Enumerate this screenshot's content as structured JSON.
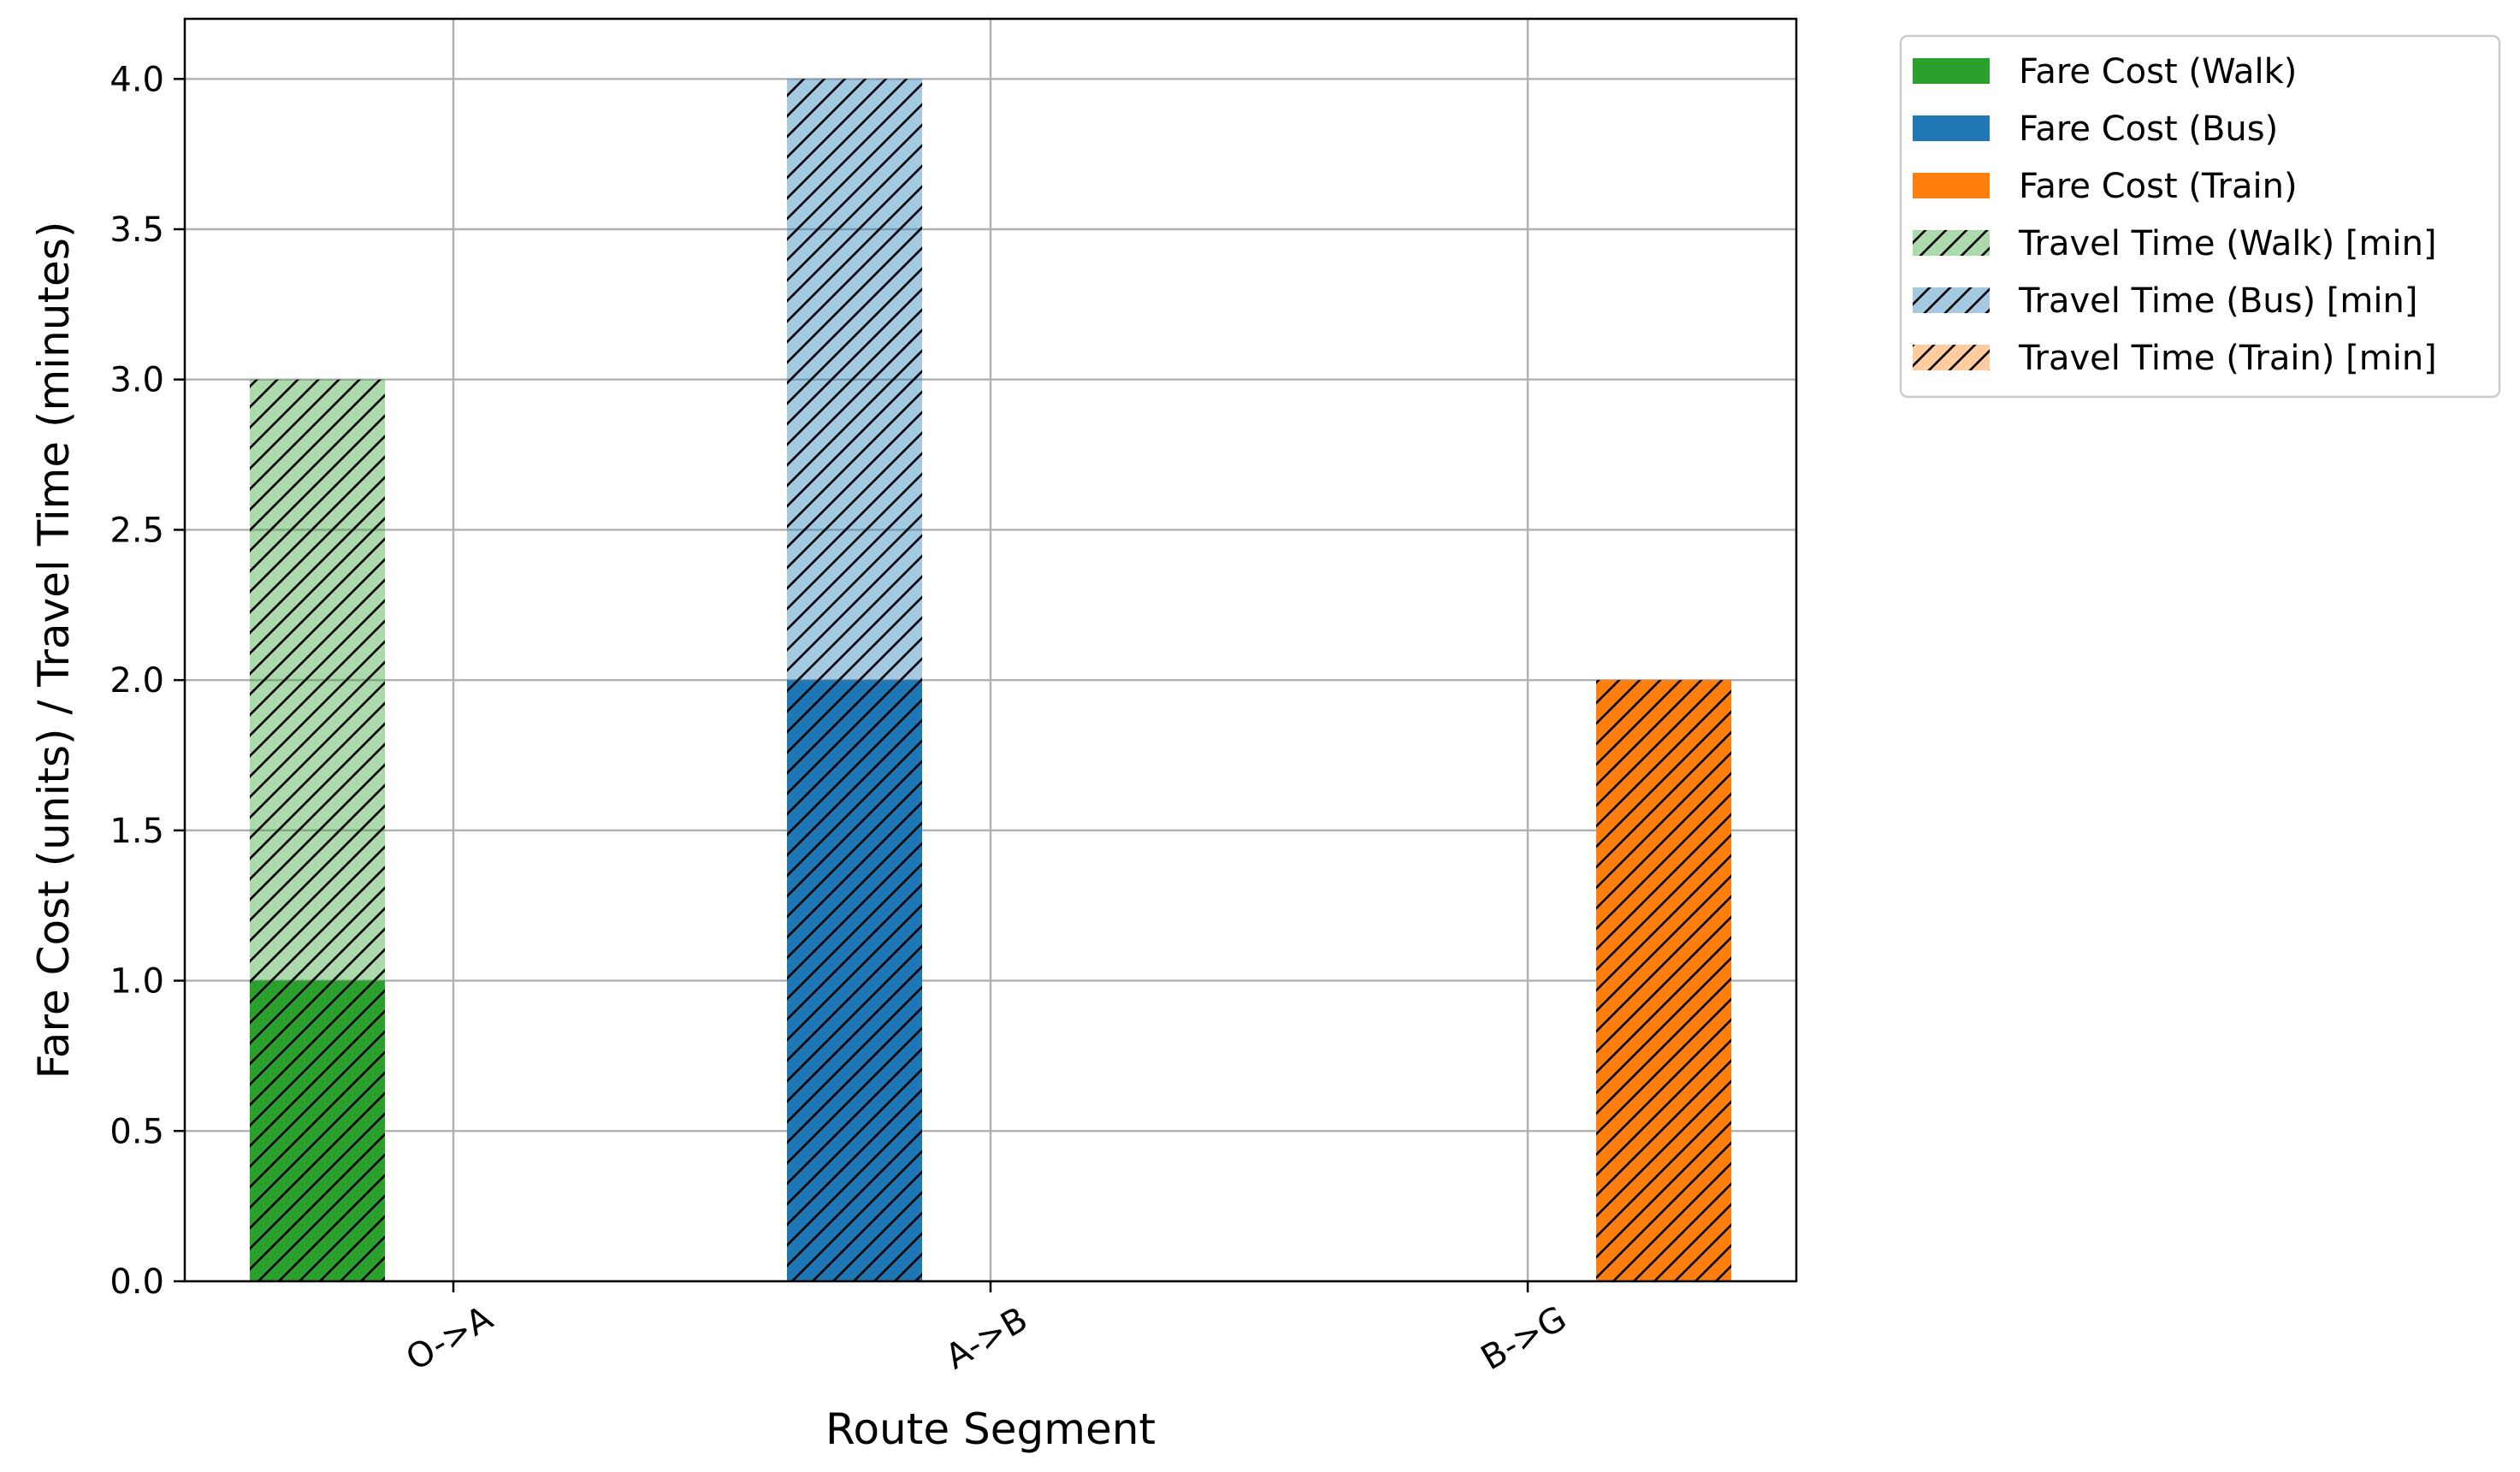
{
  "chart_data": {
    "type": "bar",
    "stacked": true,
    "title": "",
    "xlabel": "Route Segment",
    "ylabel": "Fare Cost (units) / Travel Time (minutes)",
    "categories": [
      "O->A",
      "A->B",
      "B->G"
    ],
    "ylim": [
      0,
      4.2
    ],
    "yticks": [
      0.0,
      0.5,
      1.0,
      1.5,
      2.0,
      2.5,
      3.0,
      3.5,
      4.0
    ],
    "ytick_labels": [
      "0.0",
      "0.5",
      "1.0",
      "1.5",
      "2.0",
      "2.5",
      "3.0",
      "3.5",
      "4.0"
    ],
    "grid": true,
    "legend_position": "outside-right-top",
    "xtick_rotation_deg": -30,
    "series": [
      {
        "name": "Fare Cost (Walk)",
        "values": [
          1,
          0,
          0
        ],
        "color": "#2ca02c",
        "hatch": false,
        "alpha": 1.0,
        "offset": "left"
      },
      {
        "name": "Fare Cost (Bus)",
        "values": [
          0,
          2,
          0
        ],
        "color": "#1f77b4",
        "hatch": false,
        "alpha": 1.0,
        "offset": "left"
      },
      {
        "name": "Fare Cost (Train)",
        "values": [
          0,
          0,
          2
        ],
        "color": "#ff7f0e",
        "hatch": false,
        "alpha": 1.0,
        "offset": "right"
      },
      {
        "name": "Travel Time (Walk) [min]",
        "values": [
          2,
          0,
          0
        ],
        "color": "#2ca02c",
        "hatch": true,
        "alpha": 0.4,
        "offset": "left"
      },
      {
        "name": "Travel Time (Bus) [min]",
        "values": [
          0,
          2,
          0
        ],
        "color": "#1f77b4",
        "hatch": true,
        "alpha": 0.4,
        "offset": "left"
      },
      {
        "name": "Travel Time (Train) [min]",
        "values": [
          0,
          0,
          0
        ],
        "color": "#ff7f0e",
        "hatch": true,
        "alpha": 0.4,
        "offset": "right"
      }
    ]
  }
}
